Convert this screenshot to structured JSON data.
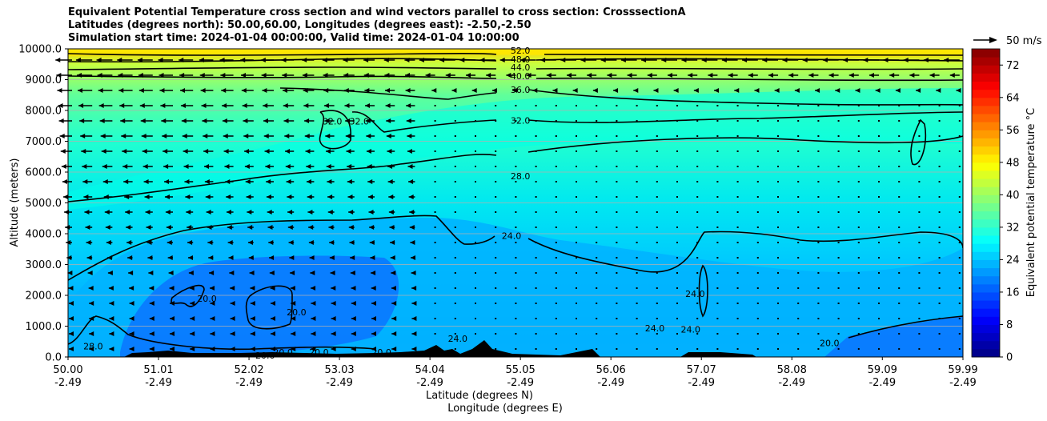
{
  "chart_data": {
    "type": "contour",
    "title_lines": [
      "Equivalent Potential Temperature cross section and wind vectors parallel to cross section: CrosssectionA",
      "Latitudes (degrees north): 50.00,60.00, Longitudes (degrees east): -2.50,-2.50",
      "Simulation start time: 2024-01-04 00:00:00, Valid time: 2024-01-04 10:00:00"
    ],
    "ylabel": "Altitude (meters)",
    "xlabel_lat": "Latitude (degrees N)",
    "xlabel_lon": "Longitude (degrees E)",
    "ylim": [
      0,
      10000
    ],
    "y_ticks": [
      "0.0",
      "1000.0",
      "2000.0",
      "3000.0",
      "4000.0",
      "5000.0",
      "6000.0",
      "7000.0",
      "8000.0",
      "9000.0",
      "10000.0"
    ],
    "y_tick_values": [
      0,
      1000,
      2000,
      3000,
      4000,
      5000,
      6000,
      7000,
      8000,
      9000,
      10000
    ],
    "x_ticks_lat": [
      "50.00",
      "51.01",
      "52.02",
      "53.03",
      "54.04",
      "55.05",
      "56.06",
      "57.07",
      "58.08",
      "59.09",
      "59.99"
    ],
    "x_ticks_lon": [
      "-2.49",
      "-2.49",
      "-2.49",
      "-2.49",
      "-2.49",
      "-2.49",
      "-2.49",
      "-2.49",
      "-2.49",
      "-2.49",
      "-2.49"
    ],
    "x_tick_values": [
      50.0,
      51.01,
      52.02,
      53.03,
      54.04,
      55.05,
      56.06,
      57.07,
      58.08,
      59.09,
      59.99
    ],
    "xlim": [
      50.0,
      59.99
    ],
    "contour_labels": [
      {
        "text": "52.0",
        "lat": 55.05,
        "alt": 9950
      },
      {
        "text": "48.0",
        "lat": 55.05,
        "alt": 9660
      },
      {
        "text": "44.0",
        "lat": 55.05,
        "alt": 9400
      },
      {
        "text": "40.0",
        "lat": 55.05,
        "alt": 9120
      },
      {
        "text": "36.0",
        "lat": 55.05,
        "alt": 8680
      },
      {
        "text": "32.0",
        "lat": 55.05,
        "alt": 7680
      },
      {
        "text": "32.0",
        "lat": 52.95,
        "alt": 7650
      },
      {
        "text": "32.0",
        "lat": 53.25,
        "alt": 7650
      },
      {
        "text": "28.0",
        "lat": 55.05,
        "alt": 5870
      },
      {
        "text": "24.0",
        "lat": 54.95,
        "alt": 3930
      },
      {
        "text": "24.0",
        "lat": 57.0,
        "alt": 2050
      },
      {
        "text": "24.0",
        "lat": 56.55,
        "alt": 930
      },
      {
        "text": "24.0",
        "lat": 56.95,
        "alt": 900
      },
      {
        "text": "24.0",
        "lat": 54.35,
        "alt": 600
      },
      {
        "text": "20.0",
        "lat": 51.55,
        "alt": 1900
      },
      {
        "text": "20.0",
        "lat": 52.55,
        "alt": 1450
      },
      {
        "text": "20.0",
        "lat": 58.5,
        "alt": 450
      },
      {
        "text": "20.0",
        "lat": 52.2,
        "alt": 50
      },
      {
        "text": "20.0",
        "lat": 52.4,
        "alt": 150
      },
      {
        "text": "20.0",
        "lat": 52.8,
        "alt": 150
      },
      {
        "text": "20.0",
        "lat": 53.5,
        "alt": 150
      },
      {
        "text": "28.0",
        "lat": 50.28,
        "alt": 350
      }
    ],
    "colorbar": {
      "label": "Equivalent potential temperature $^\\circ$C",
      "label_display": "Equivalent potential temperature °C",
      "range": [
        0,
        76
      ],
      "ticks": [
        "0",
        "8",
        "16",
        "24",
        "32",
        "40",
        "48",
        "56",
        "64",
        "72"
      ],
      "tick_values": [
        0,
        8,
        16,
        24,
        32,
        40,
        48,
        56,
        64,
        72
      ],
      "colormap": "jet"
    },
    "wind_reference_label": "50 m/s",
    "wind_reference_value": 50
  }
}
